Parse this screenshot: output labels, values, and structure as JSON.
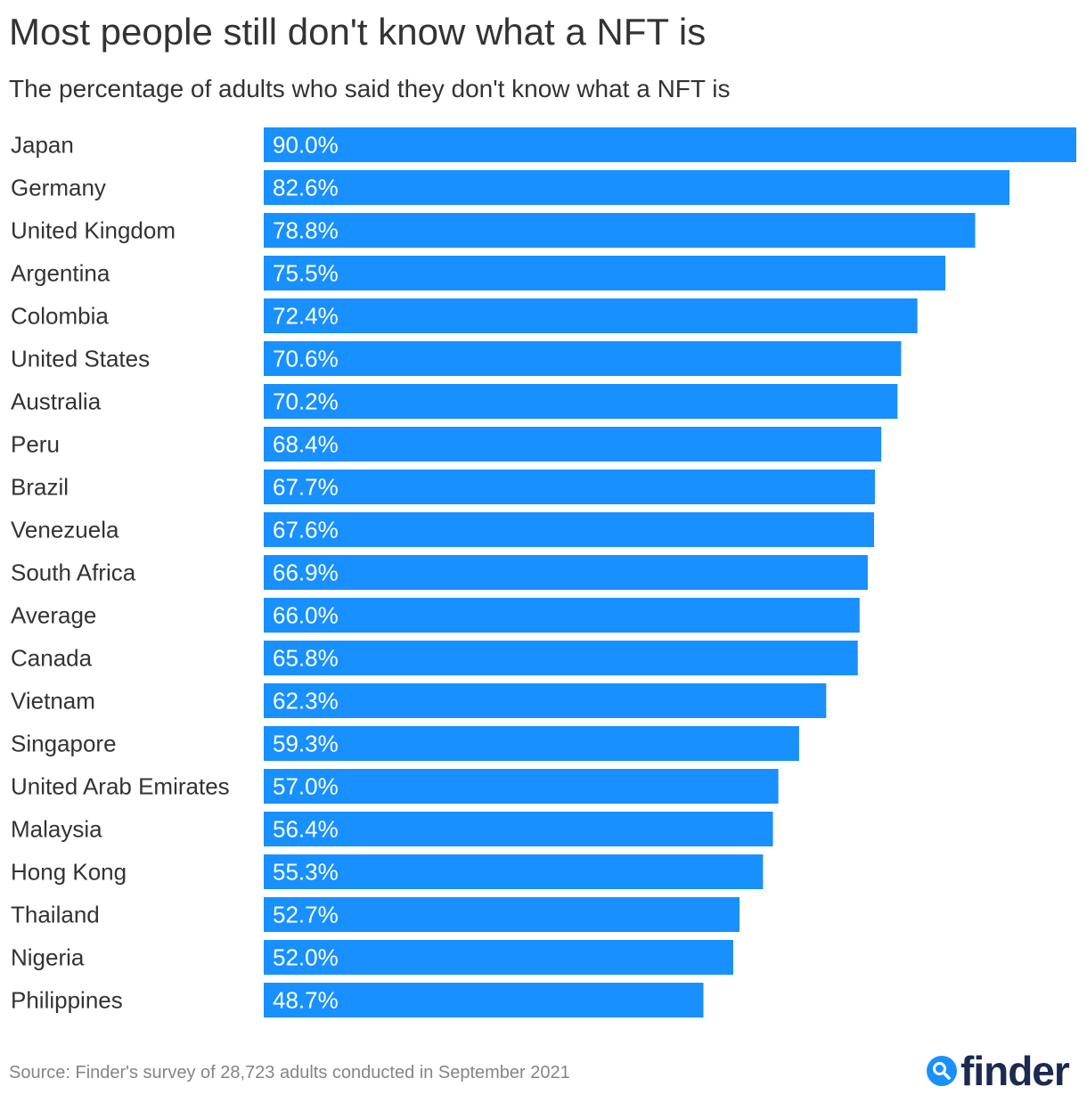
{
  "title": "Most people still don't know what a NFT is",
  "subtitle": "The percentage of adults who said they don't know what a NFT is",
  "source": "Source: Finder's survey of 28,723 adults conducted in September 2021",
  "logo_text": "finder",
  "colors": {
    "bar": "#1890ff",
    "text": "#333333",
    "source": "#858585",
    "logo_text": "#1b2a4e"
  },
  "icons": [
    "finder-search-logo-icon"
  ],
  "chart_data": {
    "type": "bar",
    "orientation": "horizontal",
    "title": "Most people still don't know what a NFT is",
    "subtitle": "The percentage of adults who said they don't know what a NFT is",
    "categories": [
      "Japan",
      "Germany",
      "United Kingdom",
      "Argentina",
      "Colombia",
      "United States",
      "Australia",
      "Peru",
      "Brazil",
      "Venezuela",
      "South Africa",
      "Average",
      "Canada",
      "Vietnam",
      "Singapore",
      "United Arab Emirates",
      "Malaysia",
      "Hong Kong",
      "Thailand",
      "Nigeria",
      "Philippines"
    ],
    "values": [
      90.0,
      82.6,
      78.8,
      75.5,
      72.4,
      70.6,
      70.2,
      68.4,
      67.7,
      67.6,
      66.9,
      66.0,
      65.8,
      62.3,
      59.3,
      57.0,
      56.4,
      55.3,
      52.7,
      52.0,
      48.7
    ],
    "value_labels": [
      "90.0%",
      "82.6%",
      "78.8%",
      "75.5%",
      "72.4%",
      "70.6%",
      "70.2%",
      "68.4%",
      "67.7%",
      "67.6%",
      "66.9%",
      "66.0%",
      "65.8%",
      "62.3%",
      "59.3%",
      "57.0%",
      "56.4%",
      "55.3%",
      "52.7%",
      "52.0%",
      "48.7%"
    ],
    "xlim": [
      0,
      90
    ],
    "grid": false,
    "legend": "none"
  }
}
